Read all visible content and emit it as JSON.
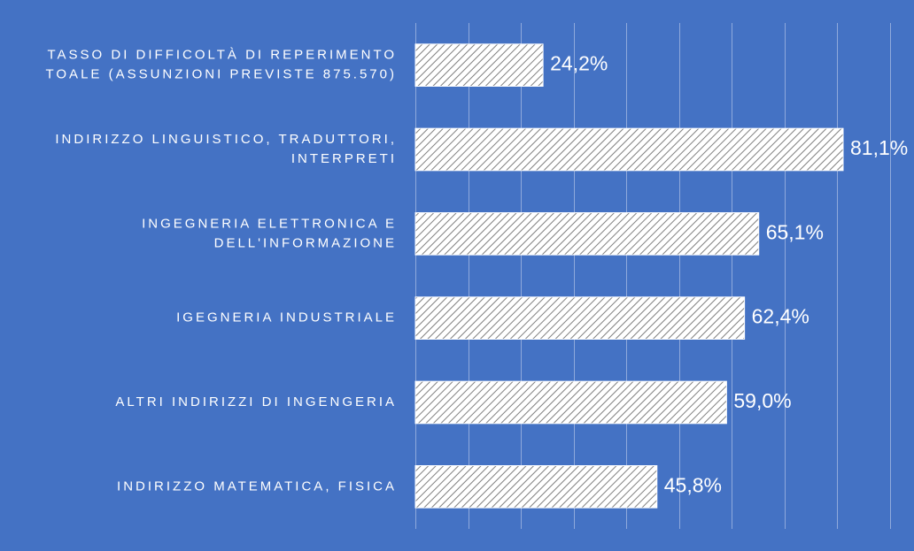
{
  "chart_data": {
    "type": "bar",
    "orientation": "horizontal",
    "categories": [
      [
        "TASSO DI DIFFICOLTÀ DI REPERIMENTO",
        "TOALE (ASSUNZIONI PREVISTE 875.570)"
      ],
      [
        "INDIRIZZO LINGUISTICO, TRADUTTORI,",
        "INTERPRETI"
      ],
      [
        "INGEGNERIA ELETTRONICA E",
        "DELL'INFORMAZIONE"
      ],
      [
        "IGEGNERIA INDUSTRIALE"
      ],
      [
        "ALTRI INDIRIZZI DI INGENGERIA"
      ],
      [
        "INDIRIZZO MATEMATICA, FISICA"
      ]
    ],
    "values": [
      24.2,
      81.1,
      65.1,
      62.4,
      59.0,
      45.8
    ],
    "value_labels": [
      "24,2%",
      "81,1%",
      "65,1%",
      "62,4%",
      "59,0%",
      "45,8%"
    ],
    "xlim": [
      0,
      90
    ],
    "grid": true,
    "bar_fill": "hatched",
    "colors": {
      "background": "#4472c4",
      "bar": "#ffffff",
      "hatch": "#7f7f7f",
      "grid": "#8fa9dc",
      "text": "#ffffff"
    }
  }
}
